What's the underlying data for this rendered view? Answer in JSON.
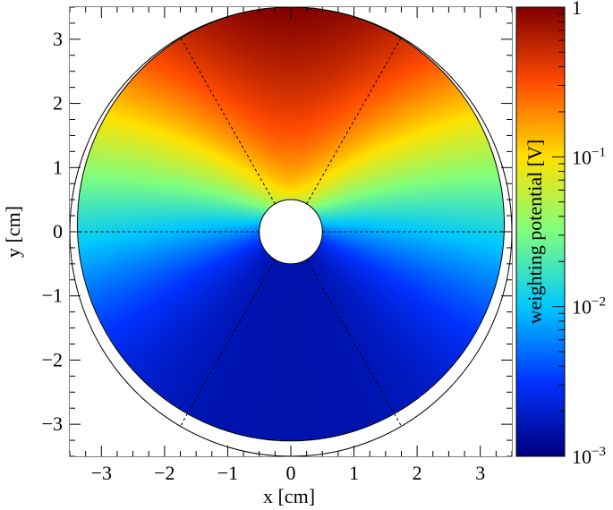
{
  "chart_data": {
    "type": "heatmap",
    "title": "",
    "xlabel": "x [cm]",
    "ylabel": "y [cm]",
    "xlim": [
      -3.5,
      3.5
    ],
    "ylim": [
      -3.5,
      3.5
    ],
    "x_ticks": [
      -3,
      -2,
      -1,
      0,
      1,
      2,
      3
    ],
    "y_ticks": [
      -3,
      -2,
      -1,
      0,
      1,
      2,
      3
    ],
    "x_tick_labels": [
      "−3",
      "−2",
      "−1",
      "0",
      "1",
      "2",
      "3"
    ],
    "y_tick_labels": [
      "−3",
      "−2",
      "−1",
      "0",
      "1",
      "2",
      "3"
    ],
    "colorbar": {
      "label": "weighting potential [V]",
      "scale": "log",
      "range": [
        0.001,
        1
      ],
      "ticks": [
        {
          "value": 1,
          "base": "1",
          "exponent": ""
        },
        {
          "value": 0.1,
          "base": "10",
          "exponent": "−1"
        },
        {
          "value": 0.01,
          "base": "10",
          "exponent": "−2"
        },
        {
          "value": 0.001,
          "base": "10",
          "exponent": "−3"
        }
      ],
      "palette": [
        "#00007f",
        "#0032ff",
        "#00c8ff",
        "#7fff7f",
        "#ffe100",
        "#ff4b00",
        "#7f0000"
      ]
    },
    "geometry": {
      "outer_radius_cm": 3.5,
      "inner_radius_cm": 0.5,
      "crystal_center_y_cm": 0.12,
      "crystal_radius_cm": 3.38,
      "segment_boundary_angles_deg": [
        0,
        60,
        120,
        180,
        240,
        300
      ]
    },
    "potential": {
      "max_value": 1,
      "min_value": 0.0015,
      "peak_direction_deg": 90
    }
  }
}
